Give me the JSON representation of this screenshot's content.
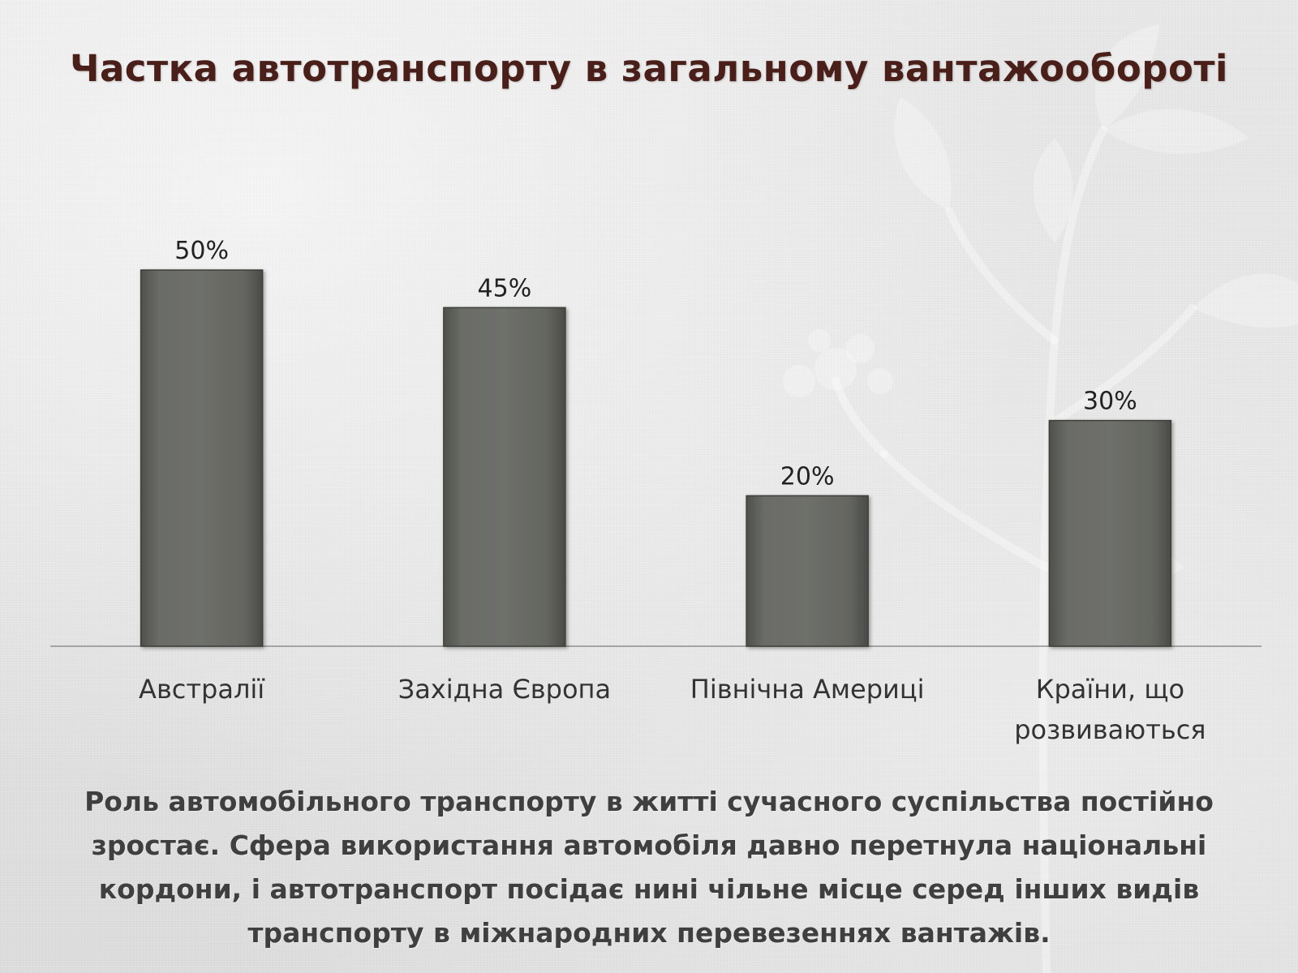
{
  "slide": {
    "title": "Частка автотранспорту в загальному вантажообороті",
    "body_text": "Роль автомобільного транспорту в житті сучасного суспільства постійно зростає. Сфера використання автомобіля давно перетнула національні кордони, і автотранспорт посідає нині чільне місце серед інших видів транспорту в міжнародних перевезеннях вантажів."
  },
  "colors": {
    "title": "#4a1f19",
    "bar": "#676863",
    "text": "#3f3f3f"
  },
  "chart_data": {
    "type": "bar",
    "title": "",
    "xlabel": "",
    "ylabel": "",
    "categories": [
      [
        "Австралії"
      ],
      [
        "Західна Європа"
      ],
      [
        "Північна Америці"
      ],
      [
        "Країни, що",
        "розвиваються"
      ]
    ],
    "values": [
      50,
      45,
      20,
      30
    ],
    "data_labels": [
      "50%",
      "45%",
      "20%",
      "30%"
    ],
    "ylim": [
      0,
      50
    ],
    "grid": false,
    "legend": "none"
  }
}
